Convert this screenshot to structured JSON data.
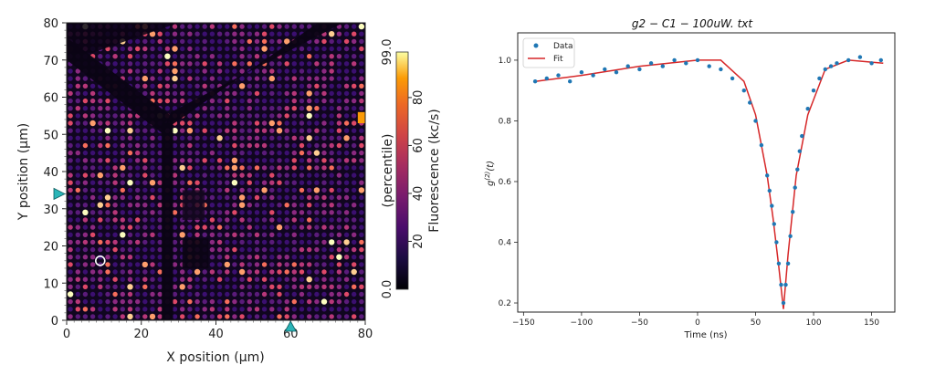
{
  "chart_data": [
    {
      "type": "heatmap",
      "title": "",
      "xlabel": "X position (µm)",
      "ylabel": "Y position (µm)",
      "xlim": [
        0,
        80
      ],
      "ylim": [
        0,
        80
      ],
      "x_ticks": [
        "0",
        "20",
        "40",
        "60",
        "80"
      ],
      "y_ticks": [
        "0",
        "10",
        "20",
        "30",
        "40",
        "50",
        "60",
        "70",
        "80"
      ],
      "colormap": "inferno",
      "colorbar": {
        "label": "Fluorescence (kc/s)",
        "sublabel": "(percentile)",
        "range": [
          0,
          99
        ],
        "min_label": "0.0",
        "max_label": "99.0",
        "ticks": [
          "20",
          "40",
          "60",
          "80"
        ]
      },
      "markers": {
        "x_marker": 60,
        "y_marker": 34,
        "marker_color": "#2bb5b8",
        "circle": [
          9,
          16
        ]
      },
      "features": {
        "diagonal_dark_lines": true,
        "vertical_dark_line_x": 27
      }
    },
    {
      "type": "scatter",
      "title": "g2 − C1 − 100uW. txt",
      "xlabel": "Time (ns)",
      "ylabel": "g(2)(t)",
      "xlim": [
        -155,
        170
      ],
      "ylim": [
        0.17,
        1.09
      ],
      "x_ticks": [
        "−150",
        "−100",
        "−50",
        "0",
        "50",
        "100",
        "150"
      ],
      "y_ticks": [
        "0.2",
        "0.4",
        "0.6",
        "0.8",
        "1.0"
      ],
      "legend_position": "top-left",
      "series": [
        {
          "name": "Data",
          "kind": "points",
          "color": "#1f77b4",
          "x": [
            -140,
            -130,
            -120,
            -110,
            -100,
            -90,
            -80,
            -70,
            -60,
            -50,
            -40,
            -30,
            -20,
            -10,
            0,
            10,
            20,
            30,
            40,
            45,
            50,
            55,
            60,
            62,
            64,
            66,
            68,
            70,
            72,
            74,
            76,
            78,
            80,
            82,
            84,
            86,
            88,
            90,
            95,
            100,
            105,
            110,
            115,
            120,
            130,
            140,
            150,
            158
          ],
          "y": [
            0.93,
            0.94,
            0.95,
            0.93,
            0.96,
            0.95,
            0.97,
            0.96,
            0.98,
            0.97,
            0.99,
            0.98,
            1.0,
            0.99,
            1.0,
            0.98,
            0.97,
            0.94,
            0.9,
            0.86,
            0.8,
            0.72,
            0.62,
            0.57,
            0.52,
            0.46,
            0.4,
            0.33,
            0.26,
            0.2,
            0.26,
            0.33,
            0.42,
            0.5,
            0.58,
            0.64,
            0.7,
            0.75,
            0.84,
            0.9,
            0.94,
            0.97,
            0.98,
            0.99,
            1.0,
            1.01,
            0.99,
            1.0
          ]
        },
        {
          "name": "Fit",
          "kind": "line",
          "color": "#d62728",
          "x": [
            -140,
            -100,
            -50,
            0,
            20,
            40,
            50,
            60,
            65,
            70,
            74,
            78,
            85,
            95,
            110,
            130,
            160
          ],
          "y": [
            0.93,
            0.95,
            0.98,
            1.0,
            1.0,
            0.93,
            0.82,
            0.62,
            0.48,
            0.32,
            0.18,
            0.36,
            0.62,
            0.82,
            0.97,
            1.0,
            0.99
          ]
        }
      ]
    }
  ]
}
